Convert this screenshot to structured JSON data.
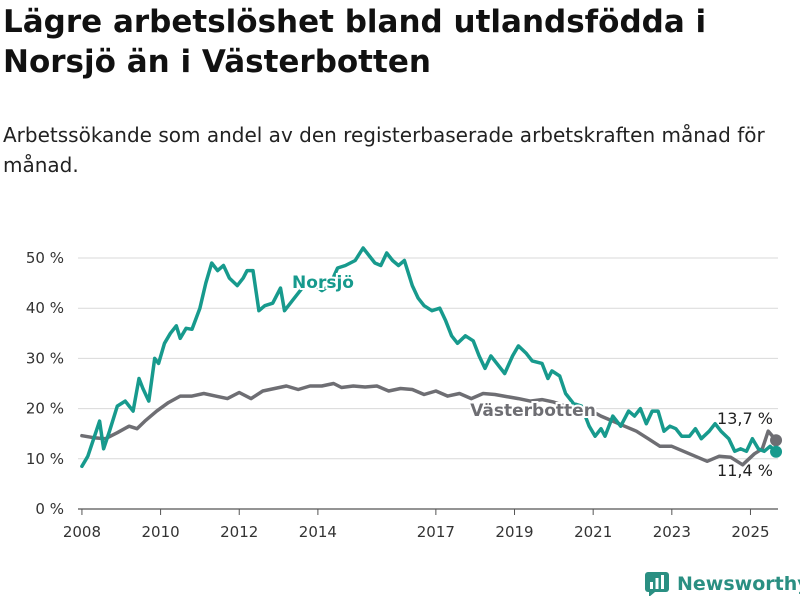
{
  "header": {
    "title": "Lägre arbetslöshet bland utlandsfödda i Norsjö än i Västerbotten",
    "subtitle": "Arbetssökande som andel av den registerbaserade arbetskraften månad för månad."
  },
  "brand": {
    "name": "Newsworthy",
    "icon": "bar-chart-logo-icon",
    "color": "#2a8f82"
  },
  "chart_data": {
    "type": "line",
    "x_unit": "year",
    "xlim": [
      2007.9,
      2025.7
    ],
    "ylim": [
      0,
      50
    ],
    "y_ticks": [
      0,
      10,
      20,
      30,
      40,
      50
    ],
    "y_tick_labels": [
      "0 %",
      "10 %",
      "20 %",
      "30 %",
      "40 %",
      "50 %"
    ],
    "x_ticks": [
      2008,
      2010,
      2012,
      2014,
      2017,
      2019,
      2021,
      2023,
      2025
    ],
    "x_tick_labels": [
      "2008",
      "2010",
      "2012",
      "2014",
      "2017",
      "2019",
      "2021",
      "2023",
      "2025"
    ],
    "grid": true,
    "series": [
      {
        "name": "Västerbotten",
        "color": "#6e6e73",
        "end_label": "13,7 %",
        "points": [
          [
            2008.0,
            14.6
          ],
          [
            2008.3,
            14.2
          ],
          [
            2008.6,
            14.0
          ],
          [
            2008.9,
            15.2
          ],
          [
            2009.2,
            16.5
          ],
          [
            2009.4,
            16.0
          ],
          [
            2009.6,
            17.5
          ],
          [
            2009.9,
            19.5
          ],
          [
            2010.2,
            21.2
          ],
          [
            2010.5,
            22.5
          ],
          [
            2010.8,
            22.5
          ],
          [
            2011.1,
            23.0
          ],
          [
            2011.4,
            22.5
          ],
          [
            2011.7,
            22.0
          ],
          [
            2012.0,
            23.2
          ],
          [
            2012.3,
            22.0
          ],
          [
            2012.6,
            23.5
          ],
          [
            2012.9,
            24.0
          ],
          [
            2013.2,
            24.5
          ],
          [
            2013.5,
            23.8
          ],
          [
            2013.8,
            24.5
          ],
          [
            2014.1,
            24.5
          ],
          [
            2014.4,
            25.0
          ],
          [
            2014.6,
            24.2
          ],
          [
            2014.9,
            24.5
          ],
          [
            2015.2,
            24.3
          ],
          [
            2015.5,
            24.5
          ],
          [
            2015.8,
            23.5
          ],
          [
            2016.1,
            24.0
          ],
          [
            2016.4,
            23.8
          ],
          [
            2016.7,
            22.8
          ],
          [
            2017.0,
            23.5
          ],
          [
            2017.3,
            22.5
          ],
          [
            2017.6,
            23.0
          ],
          [
            2017.9,
            22.0
          ],
          [
            2018.2,
            23.0
          ],
          [
            2018.5,
            22.8
          ],
          [
            2018.8,
            22.4
          ],
          [
            2019.1,
            22.0
          ],
          [
            2019.4,
            21.5
          ],
          [
            2019.7,
            21.8
          ],
          [
            2020.0,
            21.3
          ],
          [
            2020.3,
            20.5
          ],
          [
            2020.6,
            20.0
          ],
          [
            2020.9,
            19.8
          ],
          [
            2021.2,
            18.5
          ],
          [
            2021.5,
            17.5
          ],
          [
            2021.8,
            16.5
          ],
          [
            2022.1,
            15.5
          ],
          [
            2022.4,
            14.0
          ],
          [
            2022.7,
            12.5
          ],
          [
            2023.0,
            12.5
          ],
          [
            2023.3,
            11.5
          ],
          [
            2023.6,
            10.5
          ],
          [
            2023.9,
            9.5
          ],
          [
            2024.2,
            10.5
          ],
          [
            2024.5,
            10.3
          ],
          [
            2024.8,
            8.8
          ],
          [
            2025.1,
            11.0
          ],
          [
            2025.3,
            12.0
          ],
          [
            2025.45,
            15.5
          ],
          [
            2025.65,
            13.7
          ]
        ]
      },
      {
        "name": "Norsjö",
        "color": "#179a8d",
        "end_label": "11,4 %",
        "points": [
          [
            2008.0,
            8.5
          ],
          [
            2008.15,
            10.5
          ],
          [
            2008.3,
            14.0
          ],
          [
            2008.45,
            17.5
          ],
          [
            2008.55,
            12.0
          ],
          [
            2008.7,
            15.5
          ],
          [
            2008.9,
            20.5
          ],
          [
            2009.1,
            21.5
          ],
          [
            2009.3,
            19.5
          ],
          [
            2009.45,
            26.0
          ],
          [
            2009.55,
            24.0
          ],
          [
            2009.7,
            21.5
          ],
          [
            2009.85,
            30.0
          ],
          [
            2009.95,
            29.0
          ],
          [
            2010.1,
            33.0
          ],
          [
            2010.25,
            35.0
          ],
          [
            2010.4,
            36.5
          ],
          [
            2010.5,
            34.0
          ],
          [
            2010.65,
            36.0
          ],
          [
            2010.8,
            35.8
          ],
          [
            2011.0,
            40.0
          ],
          [
            2011.15,
            45.0
          ],
          [
            2011.3,
            49.0
          ],
          [
            2011.45,
            47.5
          ],
          [
            2011.6,
            48.5
          ],
          [
            2011.75,
            46.0
          ],
          [
            2011.95,
            44.5
          ],
          [
            2012.1,
            46.0
          ],
          [
            2012.2,
            47.5
          ],
          [
            2012.35,
            47.5
          ],
          [
            2012.5,
            39.5
          ],
          [
            2012.65,
            40.5
          ],
          [
            2012.85,
            41.0
          ],
          [
            2013.05,
            44.0
          ],
          [
            2013.15,
            39.5
          ],
          [
            2013.35,
            41.5
          ],
          [
            2013.6,
            44.0
          ],
          [
            2013.85,
            45.0
          ],
          [
            2014.1,
            43.5
          ],
          [
            2014.3,
            44.5
          ],
          [
            2014.5,
            48.0
          ],
          [
            2014.7,
            48.5
          ],
          [
            2014.95,
            49.5
          ],
          [
            2015.15,
            52.0
          ],
          [
            2015.3,
            50.5
          ],
          [
            2015.45,
            49.0
          ],
          [
            2015.6,
            48.5
          ],
          [
            2015.75,
            51.0
          ],
          [
            2015.9,
            49.5
          ],
          [
            2016.05,
            48.5
          ],
          [
            2016.2,
            49.5
          ],
          [
            2016.4,
            44.5
          ],
          [
            2016.55,
            42.0
          ],
          [
            2016.7,
            40.5
          ],
          [
            2016.9,
            39.5
          ],
          [
            2017.1,
            40.0
          ],
          [
            2017.25,
            37.5
          ],
          [
            2017.4,
            34.5
          ],
          [
            2017.55,
            33.0
          ],
          [
            2017.75,
            34.5
          ],
          [
            2017.95,
            33.5
          ],
          [
            2018.1,
            30.5
          ],
          [
            2018.25,
            28.0
          ],
          [
            2018.4,
            30.5
          ],
          [
            2018.55,
            29.0
          ],
          [
            2018.75,
            27.0
          ],
          [
            2018.95,
            30.5
          ],
          [
            2019.1,
            32.5
          ],
          [
            2019.3,
            31.0
          ],
          [
            2019.45,
            29.5
          ],
          [
            2019.7,
            29.0
          ],
          [
            2019.85,
            26.0
          ],
          [
            2019.95,
            27.5
          ],
          [
            2020.15,
            26.5
          ],
          [
            2020.3,
            23.0
          ],
          [
            2020.5,
            21.0
          ],
          [
            2020.7,
            20.5
          ],
          [
            2020.9,
            16.5
          ],
          [
            2021.05,
            14.5
          ],
          [
            2021.2,
            16.0
          ],
          [
            2021.3,
            14.5
          ],
          [
            2021.5,
            18.5
          ],
          [
            2021.7,
            16.5
          ],
          [
            2021.9,
            19.5
          ],
          [
            2022.05,
            18.5
          ],
          [
            2022.2,
            20.0
          ],
          [
            2022.35,
            17.0
          ],
          [
            2022.5,
            19.5
          ],
          [
            2022.65,
            19.5
          ],
          [
            2022.8,
            15.5
          ],
          [
            2022.95,
            16.5
          ],
          [
            2023.1,
            16.0
          ],
          [
            2023.25,
            14.5
          ],
          [
            2023.45,
            14.5
          ],
          [
            2023.6,
            16.0
          ],
          [
            2023.75,
            14.0
          ],
          [
            2023.95,
            15.5
          ],
          [
            2024.1,
            17.0
          ],
          [
            2024.25,
            15.5
          ],
          [
            2024.45,
            14.0
          ],
          [
            2024.6,
            11.5
          ],
          [
            2024.75,
            12.0
          ],
          [
            2024.9,
            11.5
          ],
          [
            2025.05,
            14.0
          ],
          [
            2025.2,
            12.0
          ],
          [
            2025.35,
            11.5
          ],
          [
            2025.5,
            12.5
          ],
          [
            2025.65,
            11.4
          ]
        ]
      }
    ]
  }
}
